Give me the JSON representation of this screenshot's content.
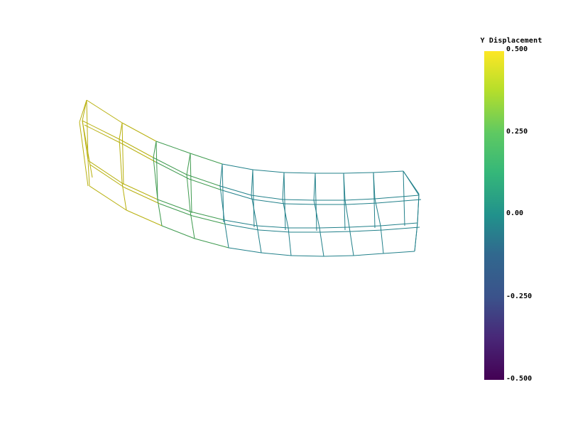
{
  "scalar_bar": {
    "title": "Y Displacement",
    "tick_labels": [
      "0.500",
      "0.250",
      "0.00",
      "-0.250",
      "-0.500"
    ],
    "range": [
      -0.5,
      0.5
    ],
    "colormap": [
      "#fde725",
      "#5ec962",
      "#21918c",
      "#3b528b",
      "#440154"
    ]
  },
  "mesh": {
    "description_colors": {
      "tip_color": "#b8b00e",
      "mid_color": "#3e9a4e",
      "base_color": "#21808a"
    }
  }
}
